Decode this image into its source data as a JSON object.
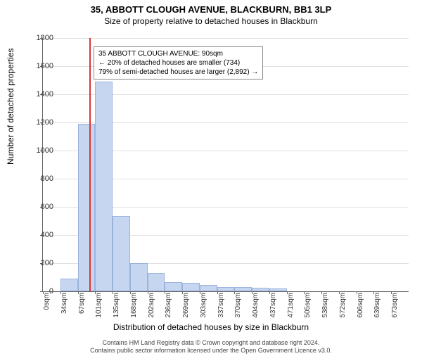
{
  "title": "35, ABBOTT CLOUGH AVENUE, BLACKBURN, BB1 3LP",
  "subtitle": "Size of property relative to detached houses in Blackburn",
  "chart": {
    "type": "histogram",
    "ylabel": "Number of detached properties",
    "xlabel": "Distribution of detached houses by size in Blackburn",
    "ylim": [
      0,
      1800
    ],
    "ytick_step": 200,
    "bar_fill": "#c7d6f0",
    "bar_border": "#9bb3dd",
    "grid_color": "#e0e0e0",
    "background": "#ffffff",
    "marker_color": "#dd3333",
    "marker_x_bin": 2,
    "x_tick_labels": [
      "0sqm",
      "34sqm",
      "67sqm",
      "101sqm",
      "135sqm",
      "168sqm",
      "202sqm",
      "236sqm",
      "269sqm",
      "303sqm",
      "337sqm",
      "370sqm",
      "404sqm",
      "437sqm",
      "471sqm",
      "505sqm",
      "538sqm",
      "572sqm",
      "606sqm",
      "639sqm",
      "673sqm"
    ],
    "values": [
      0,
      90,
      1190,
      1490,
      535,
      200,
      130,
      65,
      60,
      45,
      30,
      30,
      25,
      20,
      0,
      0,
      0,
      0,
      0,
      0,
      0
    ]
  },
  "annotation": {
    "line1": "35 ABBOTT CLOUGH AVENUE: 90sqm",
    "line2": "← 20% of detached houses are smaller (734)",
    "line3": "79% of semi-detached houses are larger (2,892) →"
  },
  "footer": {
    "line1": "Contains HM Land Registry data © Crown copyright and database right 2024.",
    "line2": "Contains public sector information licensed under the Open Government Licence v3.0."
  }
}
